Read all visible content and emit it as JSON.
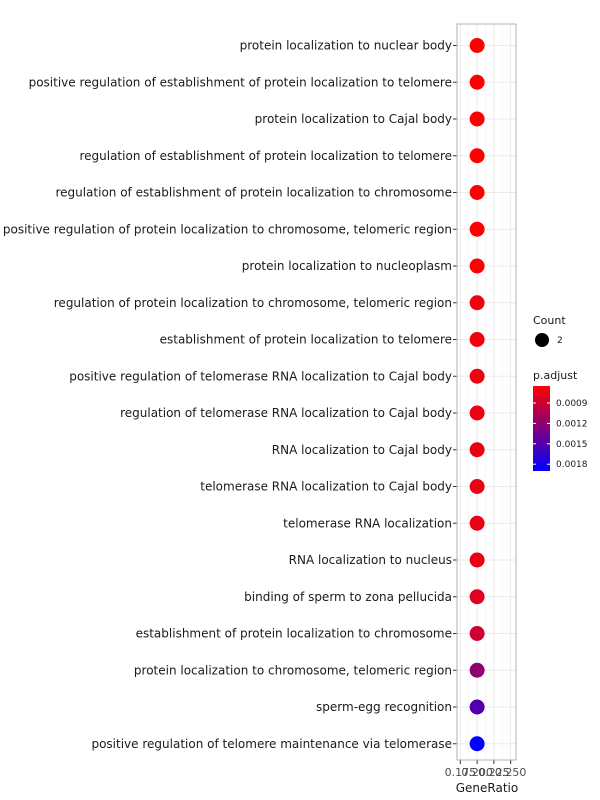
{
  "chart_data": {
    "type": "scatter",
    "xlabel": "GeneRatio",
    "x_ticks": [
      "0.175",
      "0.200",
      "0.225",
      "0.250"
    ],
    "xlim": [
      0.17,
      0.258
    ],
    "categories": [
      "protein localization to nuclear body",
      "positive regulation of establishment of protein localization to telomere",
      "protein localization to Cajal body",
      "regulation of establishment of protein localization to telomere",
      "regulation of establishment of protein localization to chromosome",
      "positive regulation of protein localization to chromosome, telomeric region",
      "protein localization to nucleoplasm",
      "regulation of protein localization to chromosome, telomeric region",
      "establishment of protein localization to telomere",
      "positive regulation of telomerase RNA localization to Cajal body",
      "regulation of telomerase RNA localization to Cajal body",
      "RNA localization to Cajal body",
      "telomerase RNA localization to Cajal body",
      "telomerase RNA localization",
      "RNA localization to nucleus",
      "binding of sperm to zona pellucida",
      "establishment of protein localization to chromosome",
      "protein localization to chromosome, telomeric region",
      "sperm-egg recognition",
      "positive regulation of telomere maintenance via telomerase"
    ],
    "points": [
      {
        "gene_ratio": 0.2,
        "count": 2,
        "p_adjust": 0.00065
      },
      {
        "gene_ratio": 0.2,
        "count": 2,
        "p_adjust": 0.00065
      },
      {
        "gene_ratio": 0.2,
        "count": 2,
        "p_adjust": 0.00065
      },
      {
        "gene_ratio": 0.2,
        "count": 2,
        "p_adjust": 0.00065
      },
      {
        "gene_ratio": 0.2,
        "count": 2,
        "p_adjust": 0.00065
      },
      {
        "gene_ratio": 0.2,
        "count": 2,
        "p_adjust": 0.00065
      },
      {
        "gene_ratio": 0.2,
        "count": 2,
        "p_adjust": 0.00065
      },
      {
        "gene_ratio": 0.2,
        "count": 2,
        "p_adjust": 0.00072
      },
      {
        "gene_ratio": 0.2,
        "count": 2,
        "p_adjust": 0.00072
      },
      {
        "gene_ratio": 0.2,
        "count": 2,
        "p_adjust": 0.00072
      },
      {
        "gene_ratio": 0.2,
        "count": 2,
        "p_adjust": 0.00075
      },
      {
        "gene_ratio": 0.2,
        "count": 2,
        "p_adjust": 0.00075
      },
      {
        "gene_ratio": 0.2,
        "count": 2,
        "p_adjust": 0.00075
      },
      {
        "gene_ratio": 0.2,
        "count": 2,
        "p_adjust": 0.00075
      },
      {
        "gene_ratio": 0.2,
        "count": 2,
        "p_adjust": 0.00075
      },
      {
        "gene_ratio": 0.2,
        "count": 2,
        "p_adjust": 0.0008
      },
      {
        "gene_ratio": 0.2,
        "count": 2,
        "p_adjust": 0.0009
      },
      {
        "gene_ratio": 0.2,
        "count": 2,
        "p_adjust": 0.0012
      },
      {
        "gene_ratio": 0.2,
        "count": 2,
        "p_adjust": 0.0015
      },
      {
        "gene_ratio": 0.2,
        "count": 2,
        "p_adjust": 0.0019
      }
    ],
    "legend_count": {
      "title": "Count",
      "label": "2"
    },
    "legend_color": {
      "title": "p.adjust",
      "labels": [
        "0.0009",
        "0.0012",
        "0.0015",
        "0.0018"
      ],
      "tick_values": [
        0.0009,
        0.0012,
        0.0015,
        0.0018
      ],
      "range": [
        0.00065,
        0.0019
      ],
      "low_color": "#ff0000",
      "high_color": "#0000ff"
    },
    "grid": true,
    "legend_position": "right",
    "colors": {
      "panel_border": "#b3b3b3",
      "grid": "#ebebeb",
      "point_red": "#ff0000",
      "point_blue": "#0000ff"
    }
  }
}
